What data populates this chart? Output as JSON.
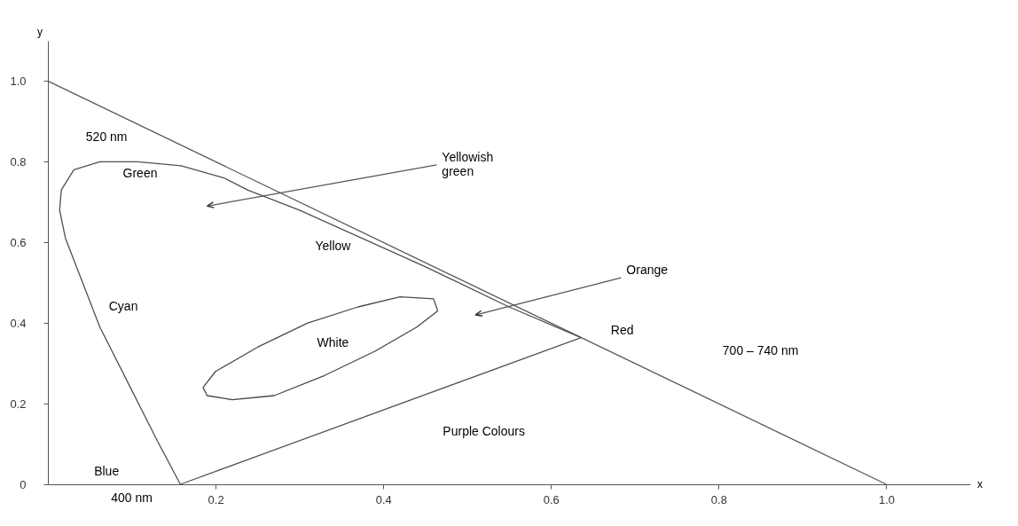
{
  "chart_data": {
    "type": "line",
    "xlabel": "x",
    "ylabel": "y",
    "xlim": [
      0,
      1.1
    ],
    "ylim": [
      0,
      1.1
    ],
    "xticks": [
      0.2,
      0.4,
      0.6,
      0.8,
      {
        "value": 1.0,
        "label": "1.0"
      }
    ],
    "yticks": [
      0,
      0.2,
      0.4,
      0.6,
      0.8,
      {
        "value": 1.0,
        "label": "1.0"
      }
    ],
    "grid": false,
    "marker": "none",
    "line_style": "solid",
    "series": [
      {
        "color": "#5a5a5a",
        "x": [
          0,
          1
        ],
        "values": [
          1,
          0
        ]
      },
      {
        "color": "#505050",
        "x": [
          0.158,
          0.13,
          0.096,
          0.062,
          0.034,
          0.021,
          0.014,
          0.016,
          0.031,
          0.062,
          0.107,
          0.159,
          0.21,
          0.238,
          0.3,
          0.45,
          0.55,
          0.636
        ],
        "values": [
          0,
          0.11,
          0.25,
          0.39,
          0.54,
          0.61,
          0.68,
          0.73,
          0.78,
          0.8,
          0.8,
          0.79,
          0.76,
          0.73,
          0.68,
          0.54,
          0.44,
          0.364
        ]
      },
      {
        "color": "#555555",
        "x": [
          0.158,
          0.636
        ],
        "values": [
          0,
          0.364
        ]
      },
      {
        "color": "#4b4b4b",
        "x": [
          0.185,
          0.2,
          0.25,
          0.31,
          0.37,
          0.42,
          0.46,
          0.465
        ],
        "values": [
          0.24,
          0.28,
          0.34,
          0.4,
          0.44,
          0.465,
          0.46,
          0.43
        ]
      },
      {
        "color": "#464646",
        "x": [
          0.185,
          0.19,
          0.22,
          0.27,
          0.33,
          0.39,
          0.44,
          0.465
        ],
        "values": [
          0.24,
          0.22,
          0.21,
          0.22,
          0.27,
          0.33,
          0.39,
          0.43
        ]
      }
    ],
    "annotations": [
      "520 nm",
      "Green",
      "Yellowish green",
      "Yellow",
      "Orange",
      "Cyan",
      "White",
      "Red",
      "700 – 740 nm",
      "Purple Colours",
      "Blue",
      "400 nm"
    ]
  }
}
